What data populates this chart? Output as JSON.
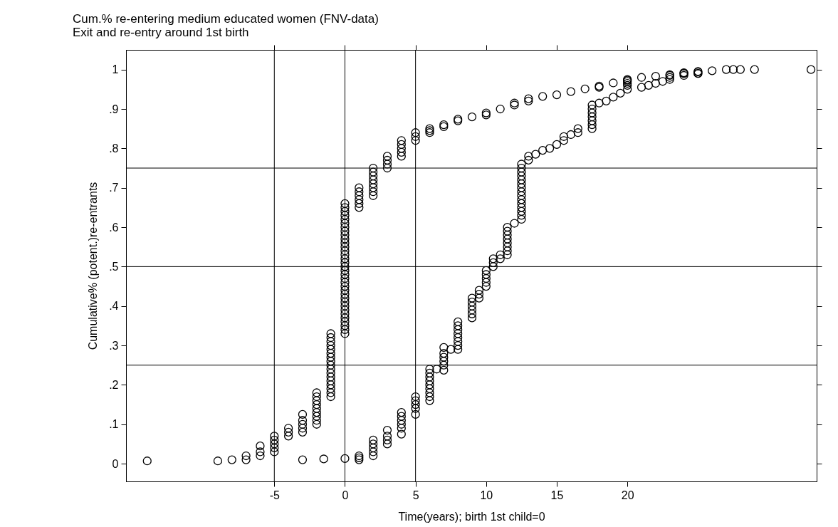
{
  "chart_data": {
    "type": "scatter",
    "title": "Cum.% re-entering medium educated women (FNV-data)",
    "subtitle": "Exit and re-entry around 1st birth",
    "xlabel": "Time(years); birth 1st child=0",
    "ylabel": "Cumulative% (potent.)re-entrants",
    "marker": "circle",
    "grid": false,
    "xlim": [
      -15.5,
      33.4
    ],
    "ylim": [
      -0.045,
      1.05
    ],
    "xticks": [
      -5,
      0,
      5,
      10,
      15,
      20
    ],
    "yticks": [
      0,
      {
        "value": 0.1,
        "label": ".1"
      },
      {
        "value": 0.2,
        "label": ".2"
      },
      {
        "value": 0.3,
        "label": ".3"
      },
      {
        "value": 0.4,
        "label": ".4"
      },
      {
        "value": 0.5,
        "label": ".5"
      },
      {
        "value": 0.6,
        "label": ".6"
      },
      {
        "value": 0.7,
        "label": ".7"
      },
      {
        "value": 0.8,
        "label": ".8"
      },
      {
        "value": 0.9,
        "label": ".9"
      },
      1
    ],
    "ref_lines": [
      {
        "axis": "x",
        "value": -5
      },
      {
        "axis": "x",
        "value": 0
      },
      {
        "axis": "x",
        "value": 5
      },
      {
        "axis": "y",
        "value": 0.25
      },
      {
        "axis": "y",
        "value": 0.5
      },
      {
        "axis": "y",
        "value": 0.75
      }
    ],
    "series": [
      {
        "color": "#000000",
        "x": [
          -14,
          -9,
          -8,
          -7,
          -7,
          -6,
          -6,
          -6,
          -5,
          -5,
          -5,
          -5,
          -5,
          -4,
          -4,
          -4,
          -3,
          -3,
          -3,
          -3,
          -3,
          -2,
          -2,
          -2,
          -2,
          -2,
          -2,
          -2,
          -2,
          -2,
          -1,
          -1,
          -1,
          -1,
          -1,
          -1,
          -1,
          -1,
          -1,
          -1,
          -1,
          -1,
          -1,
          -1,
          -1,
          -1,
          -1,
          0,
          0,
          0,
          0,
          0,
          0,
          0,
          0,
          0,
          0,
          0,
          0,
          0,
          0,
          0,
          0,
          0,
          0,
          0,
          0,
          0,
          0,
          0,
          0,
          0,
          0,
          0,
          0,
          0,
          0,
          0,
          0,
          0,
          0,
          1,
          1,
          1,
          1,
          1,
          1,
          2,
          2,
          2,
          2,
          2,
          2,
          2,
          2,
          3,
          3,
          3,
          3,
          4,
          4,
          4,
          4,
          4,
          5,
          5,
          5,
          6,
          6,
          6,
          7,
          7,
          8,
          8,
          9,
          10,
          10,
          11,
          12,
          12,
          13,
          13,
          14,
          15,
          16,
          17,
          18,
          18,
          19,
          20,
          20,
          20,
          21,
          22,
          23,
          23,
          24,
          24,
          25,
          25,
          26,
          27,
          27.5,
          28,
          29,
          33
        ],
        "values": [
          0.007,
          0.007,
          0.01,
          0.01,
          0.02,
          0.02,
          0.03,
          0.045,
          0.03,
          0.04,
          0.05,
          0.06,
          0.07,
          0.07,
          0.08,
          0.09,
          0.08,
          0.09,
          0.1,
          0.11,
          0.125,
          0.1,
          0.11,
          0.12,
          0.13,
          0.14,
          0.15,
          0.16,
          0.17,
          0.18,
          0.17,
          0.18,
          0.19,
          0.2,
          0.21,
          0.22,
          0.23,
          0.24,
          0.25,
          0.26,
          0.27,
          0.28,
          0.29,
          0.3,
          0.31,
          0.32,
          0.33,
          0.33,
          0.34,
          0.35,
          0.36,
          0.37,
          0.38,
          0.39,
          0.4,
          0.41,
          0.42,
          0.43,
          0.44,
          0.45,
          0.46,
          0.47,
          0.48,
          0.49,
          0.5,
          0.51,
          0.52,
          0.53,
          0.54,
          0.55,
          0.56,
          0.57,
          0.58,
          0.59,
          0.6,
          0.61,
          0.62,
          0.63,
          0.64,
          0.65,
          0.66,
          0.65,
          0.66,
          0.67,
          0.68,
          0.69,
          0.7,
          0.68,
          0.69,
          0.7,
          0.71,
          0.72,
          0.73,
          0.74,
          0.75,
          0.75,
          0.76,
          0.77,
          0.78,
          0.78,
          0.79,
          0.8,
          0.81,
          0.82,
          0.82,
          0.83,
          0.84,
          0.84,
          0.845,
          0.85,
          0.855,
          0.86,
          0.87,
          0.874,
          0.88,
          0.885,
          0.89,
          0.9,
          0.91,
          0.915,
          0.92,
          0.926,
          0.932,
          0.936,
          0.944,
          0.951,
          0.955,
          0.958,
          0.966,
          0.965,
          0.973,
          0.975,
          0.98,
          0.983,
          0.985,
          0.987,
          0.99,
          0.992,
          0.99,
          0.994,
          0.997,
          1,
          1,
          1,
          1,
          1
        ]
      },
      {
        "color": "#000000",
        "x": [
          -3,
          -1.5,
          0,
          1,
          1,
          1,
          2,
          2,
          2,
          2,
          2,
          3,
          3,
          3,
          3,
          4,
          4,
          4,
          4,
          4,
          4,
          5,
          5,
          5,
          5,
          5,
          6,
          6,
          6,
          6,
          6,
          6,
          6,
          6,
          6,
          6.5,
          7,
          7,
          7,
          7,
          7,
          7,
          7.5,
          8,
          8,
          8,
          8,
          8,
          8,
          8,
          8,
          9,
          9,
          9,
          9,
          9,
          9,
          9.5,
          9.5,
          9.5,
          10,
          10,
          10,
          10,
          10,
          10.5,
          10.5,
          10.5,
          11,
          11,
          11.5,
          11.5,
          11.5,
          11.5,
          11.5,
          11.5,
          11.5,
          11.5,
          12,
          12.5,
          12.5,
          12.5,
          12.5,
          12.5,
          12.5,
          12.5,
          12.5,
          12.5,
          12.5,
          12.5,
          12.5,
          12.5,
          12.5,
          12.5,
          13,
          13,
          13.5,
          14,
          14.5,
          15,
          15.5,
          15.5,
          16,
          16.5,
          16.5,
          17.5,
          17.5,
          17.5,
          17.5,
          17.5,
          17.5,
          17.5,
          18,
          18.5,
          19,
          19.5,
          20,
          20,
          20,
          21,
          21.5,
          22,
          22.5,
          23,
          23,
          24,
          24,
          25,
          25
        ],
        "values": [
          0.01,
          0.012,
          0.013,
          0.01,
          0.015,
          0.02,
          0.02,
          0.03,
          0.04,
          0.05,
          0.06,
          0.05,
          0.06,
          0.07,
          0.085,
          0.075,
          0.09,
          0.1,
          0.11,
          0.12,
          0.13,
          0.125,
          0.14,
          0.15,
          0.16,
          0.17,
          0.16,
          0.17,
          0.18,
          0.19,
          0.2,
          0.21,
          0.22,
          0.23,
          0.24,
          0.24,
          0.237,
          0.25,
          0.26,
          0.27,
          0.28,
          0.295,
          0.29,
          0.29,
          0.3,
          0.31,
          0.32,
          0.33,
          0.34,
          0.35,
          0.36,
          0.37,
          0.38,
          0.39,
          0.4,
          0.41,
          0.42,
          0.42,
          0.43,
          0.44,
          0.45,
          0.46,
          0.47,
          0.48,
          0.49,
          0.5,
          0.51,
          0.52,
          0.52,
          0.53,
          0.53,
          0.54,
          0.55,
          0.56,
          0.57,
          0.58,
          0.59,
          0.6,
          0.61,
          0.62,
          0.63,
          0.64,
          0.65,
          0.66,
          0.67,
          0.68,
          0.69,
          0.7,
          0.71,
          0.72,
          0.73,
          0.74,
          0.75,
          0.76,
          0.77,
          0.78,
          0.785,
          0.795,
          0.8,
          0.81,
          0.82,
          0.83,
          0.835,
          0.84,
          0.85,
          0.85,
          0.86,
          0.87,
          0.88,
          0.89,
          0.9,
          0.91,
          0.915,
          0.92,
          0.93,
          0.94,
          0.95,
          0.96,
          0.97,
          0.955,
          0.96,
          0.965,
          0.97,
          0.975,
          0.98,
          0.985,
          0.99,
          0.99,
          0.995
        ]
      }
    ]
  }
}
